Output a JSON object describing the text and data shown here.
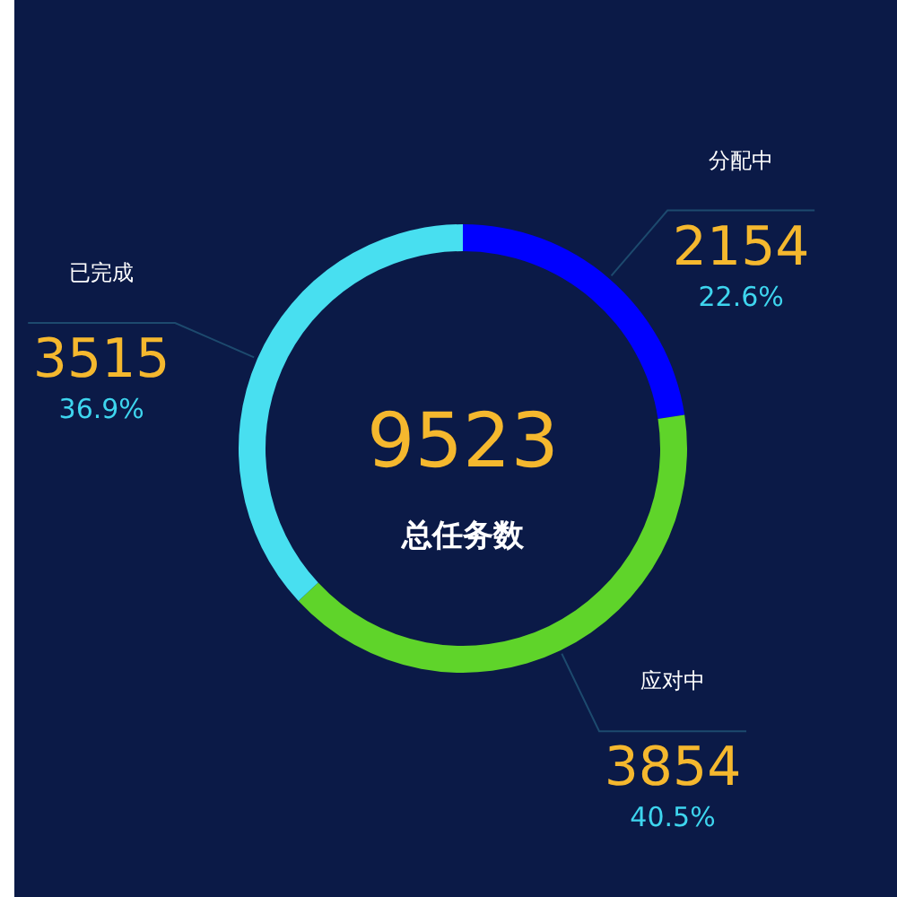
{
  "chart_data": {
    "type": "donut",
    "categories": [
      "分配中",
      "应对中",
      "已完成"
    ],
    "values": [
      22.6,
      40.5,
      36.9
    ],
    "colors": [
      "#0000ff",
      "#5fd42a",
      "#48dff0"
    ],
    "value_labels": [
      "2154\n22.6%",
      "3854\n40.5%",
      "3515\n36.9%"
    ],
    "title": "9523",
    "subtitle": "总任务数",
    "legend": false
  }
}
